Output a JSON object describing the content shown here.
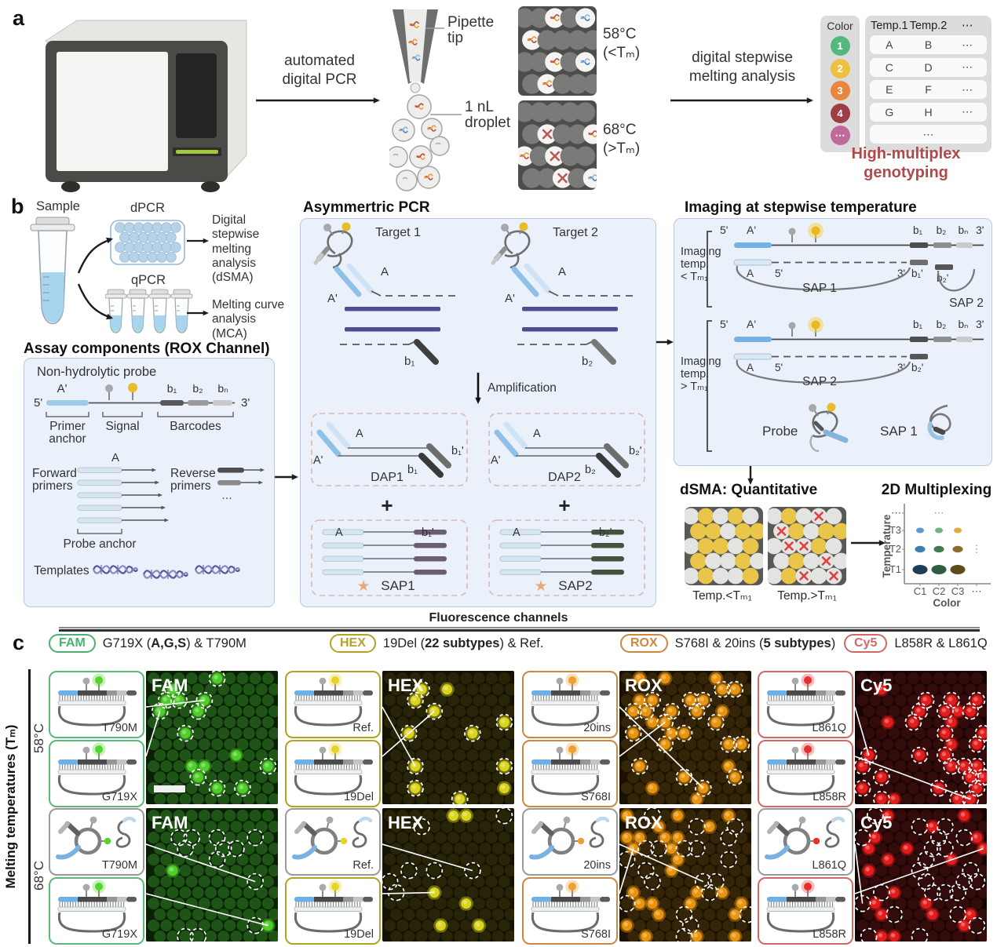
{
  "panel_a": {
    "label": "a",
    "arrow1": [
      "automated",
      "digital PCR"
    ],
    "pipette_label": "Pipette tip",
    "droplet_label": "1 nL droplet",
    "arrays": [
      {
        "temp": "58°C",
        "cond": "(<Tₘ)",
        "type": "intact"
      },
      {
        "temp": "68°C",
        "cond": "(>Tₘ)",
        "type": "melted"
      }
    ],
    "arrow2": [
      "digital stepwise",
      "melting analysis"
    ],
    "table": {
      "color_header": "Color",
      "headers": [
        "Temp.1",
        "Temp.2",
        "⋯"
      ],
      "rows": [
        {
          "num": "1",
          "color": "#53b77e",
          "cells": [
            "A",
            "B",
            "⋯"
          ]
        },
        {
          "num": "2",
          "color": "#edc044",
          "cells": [
            "C",
            "D",
            "⋯"
          ]
        },
        {
          "num": "3",
          "color": "#e8863f",
          "cells": [
            "E",
            "F",
            "⋯"
          ]
        },
        {
          "num": "4",
          "color": "#9e3d44",
          "cells": [
            "G",
            "H",
            "⋯"
          ]
        },
        {
          "num": "⋯",
          "color": "#c0699b",
          "cells": [
            "⋯"
          ]
        }
      ]
    },
    "outcome": [
      "High-multiplex",
      "genotyping"
    ],
    "outcome_color": "#b04a4a"
  },
  "panel_b": {
    "label": "b",
    "sample_label": "Sample",
    "dpcr_label": "dPCR",
    "qpcr_label": "qPCR",
    "dsma_label": "Digital stepwise melting analysis (dSMA)",
    "mca_label": "Melting curve analysis (MCA)",
    "assay_title": "Assay components (ROX Channel)",
    "assay": {
      "probe_title": "Non-hydrolytic probe",
      "five_prime": "5'",
      "a_prime": "A'",
      "three_prime": "3'",
      "b1": "b₁",
      "b2": "b₂",
      "bn": "bₙ",
      "primer_anchor": [
        "Primer",
        "anchor"
      ],
      "signal": "Signal",
      "barcodes": "Barcodes",
      "a": "A",
      "forward": [
        "Forward",
        "primers"
      ],
      "reverse": [
        "Reverse",
        "primers"
      ],
      "more": "...",
      "probe_anchor": "Probe anchor",
      "templates": "Templates"
    },
    "apcr": {
      "title": "Asymmertric PCR",
      "targets": [
        "Target 1",
        "Target 2"
      ],
      "a": "A",
      "a_prime": "A'",
      "rev_primers": [
        "b₁",
        "b₂"
      ],
      "amplification": "Amplification",
      "daps": [
        "DAP1",
        "DAP2"
      ],
      "dap_tails": [
        [
          "b₁'",
          "b₁"
        ],
        [
          "b₂'",
          "b₂"
        ]
      ],
      "plus": "+",
      "saps": [
        "SAP1",
        "SAP2"
      ],
      "sap_tails": [
        "b₁'",
        "b₂'"
      ],
      "sap_tail_colors": [
        "#6a5e74",
        "#46523f"
      ],
      "star_color": "#e8a878"
    },
    "imaging": {
      "title": "Imaging at stepwise temperature",
      "cond1": [
        "Imaging",
        "temp.",
        "< Tₘ₁"
      ],
      "cond2": [
        "Imaging",
        "temp.",
        "> Tₘ₁"
      ],
      "five_prime": "5'",
      "three_prime": "3'",
      "a_prime": "A'",
      "a": "A",
      "b1": "b₁",
      "b2": "b₂",
      "bn": "bₙ",
      "b1p": "b₁'",
      "b2p": "b₂'",
      "sap1": "SAP 1",
      "sap2": "SAP 2",
      "probe": "Probe"
    },
    "dsma_quant": {
      "title": "dSMA: Quantitative",
      "labels": [
        "Temp.<Tₘ₁",
        "Temp.>Tₘ₁"
      ],
      "grid_low": [
        "WYWYW",
        "YYWYY",
        "WYYWY",
        "YWWYW",
        "WYWWY"
      ],
      "grid_high": [
        "WYWXW",
        "XYWYY",
        "WXXYW",
        "WYWXW",
        "WYXWX"
      ],
      "yellow": "#e9c64a",
      "white": "#e3e3e1",
      "x_color": "#e04040"
    },
    "multiplex": {
      "title": "2D Multiplexing",
      "ylabel": "Temperature",
      "xlabel": "Color",
      "yticks": [
        "⋯",
        "T3",
        "T2",
        "T1"
      ],
      "xticks": [
        "C1",
        "C2",
        "C3",
        "⋯"
      ],
      "dot_colors": [
        [
          "#5b9bd5",
          "#6eb487",
          "#e0aa3e"
        ],
        [
          "#3d7eaa",
          "#3f7d51",
          "#8a6d28"
        ],
        [
          "#1d3d59",
          "#2d5e3f",
          "#5e4a1a"
        ]
      ]
    }
  },
  "panel_c": {
    "label": "c",
    "fluor_header": "Fluorescence channels",
    "channels": [
      {
        "badge": "FAM",
        "color": "#4cb06e",
        "desc": [
          {
            "t": "G719X (",
            "b": false
          },
          {
            "t": "A,G,S",
            "b": true
          },
          {
            "t": ") & T790M",
            "b": false
          }
        ]
      },
      {
        "badge": "HEX",
        "color": "#b3a325",
        "desc": [
          {
            "t": "19Del (",
            "b": false
          },
          {
            "t": "22 subtypes",
            "b": true
          },
          {
            "t": ") & Ref.",
            "b": false
          }
        ]
      },
      {
        "badge": "ROX",
        "color": "#cd8840",
        "desc": [
          {
            "t": "S768I & 20ins (",
            "b": false
          },
          {
            "t": "5 subtypes",
            "b": true
          },
          {
            "t": ")",
            "b": false
          }
        ]
      },
      {
        "badge": "Cy5",
        "color": "#d26767",
        "desc": [
          {
            "t": "L858R & L861Q",
            "b": false
          }
        ]
      }
    ],
    "melting_axis": "Melting temperatures (Tₘ)",
    "rows": [
      {
        "temp": "58°C",
        "groups": [
          {
            "img": "FAM",
            "glow": "#56d42e",
            "border": "#5cb87a",
            "boxes": [
              {
                "label": "T790M",
                "state": "bound"
              },
              {
                "label": "G719X",
                "state": "bound"
              }
            ],
            "image": {
              "bg": "#0a1f06",
              "cell": "#1e5416",
              "dot": "#4fce2a",
              "bright": 15,
              "dashed": 12,
              "dashed_on_bright": true,
              "scalebar": true,
              "seed": 11
            }
          },
          {
            "img": "HEX",
            "glow": "#e8d429",
            "border": "#b3a325",
            "boxes": [
              {
                "label": "Ref.",
                "state": "bound"
              },
              {
                "label": "19Del",
                "state": "bound"
              }
            ],
            "image": {
              "bg": "#141202",
              "cell": "#282408",
              "dot": "#d9d41c",
              "bright": 12,
              "dashed": 10,
              "dashed_on_bright": true,
              "scalebar": false,
              "seed": 22
            }
          },
          {
            "img": "ROX",
            "glow": "#eda132",
            "border": "#cd8840",
            "boxes": [
              {
                "label": "20ins",
                "state": "bound"
              },
              {
                "label": "S768I",
                "state": "bound"
              }
            ],
            "image": {
              "bg": "#1c1202",
              "cell": "#342408",
              "dot": "#e8940e",
              "bright": 30,
              "dashed": 20,
              "dashed_on_bright": true,
              "scalebar": false,
              "seed": 33
            }
          },
          {
            "img": "Cy5",
            "glow": "#e43030",
            "border": "#d26767",
            "boxes": [
              {
                "label": "L861Q",
                "state": "bound"
              },
              {
                "label": "L858R",
                "state": "bound"
              }
            ],
            "image": {
              "bg": "#170404",
              "cell": "#330b0b",
              "dot": "#e41c1c",
              "bright": 32,
              "dashed": 26,
              "dashed_on_bright": true,
              "scalebar": false,
              "seed": 44
            }
          }
        ]
      },
      {
        "temp": "68°C",
        "groups": [
          {
            "img": "FAM",
            "glow": "#56d42e",
            "border": "#5cb87a",
            "boxes": [
              {
                "label": "T790M",
                "state": "melted"
              },
              {
                "label": "G719X",
                "state": "bound"
              }
            ],
            "image": {
              "bg": "#0a1f06",
              "cell": "#1e5416",
              "dot": "#4fce2a",
              "bright": 2,
              "dashed": 12,
              "dashed_on_bright": false,
              "scalebar": false,
              "seed": 55
            }
          },
          {
            "img": "HEX",
            "glow": "#e8d429",
            "border": "#b3a325",
            "boxes": [
              {
                "label": "Ref.",
                "state": "melted"
              },
              {
                "label": "19Del",
                "state": "bound"
              }
            ],
            "image": {
              "bg": "#141202",
              "cell": "#282408",
              "dot": "#d9d41c",
              "bright": 6,
              "dashed": 7,
              "dashed_on_bright": false,
              "scalebar": false,
              "seed": 66
            }
          },
          {
            "img": "ROX",
            "glow": "#eda132",
            "border": "#cd8840",
            "boxes": [
              {
                "label": "20ins",
                "state": "melted"
              },
              {
                "label": "S768I",
                "state": "bound"
              }
            ],
            "image": {
              "bg": "#1c1202",
              "cell": "#342408",
              "dot": "#e8940e",
              "bright": 26,
              "dashed": 20,
              "dashed_on_bright": false,
              "scalebar": false,
              "seed": 77
            }
          },
          {
            "img": "Cy5",
            "glow": "#e43030",
            "border": "#d26767",
            "boxes": [
              {
                "label": "L861Q",
                "state": "melted"
              },
              {
                "label": "L858R",
                "state": "bound"
              }
            ],
            "image": {
              "bg": "#170404",
              "cell": "#330b0b",
              "dot": "#e41c1c",
              "bright": 20,
              "dashed": 24,
              "dashed_on_bright": false,
              "scalebar": false,
              "seed": 88
            }
          }
        ]
      }
    ]
  }
}
